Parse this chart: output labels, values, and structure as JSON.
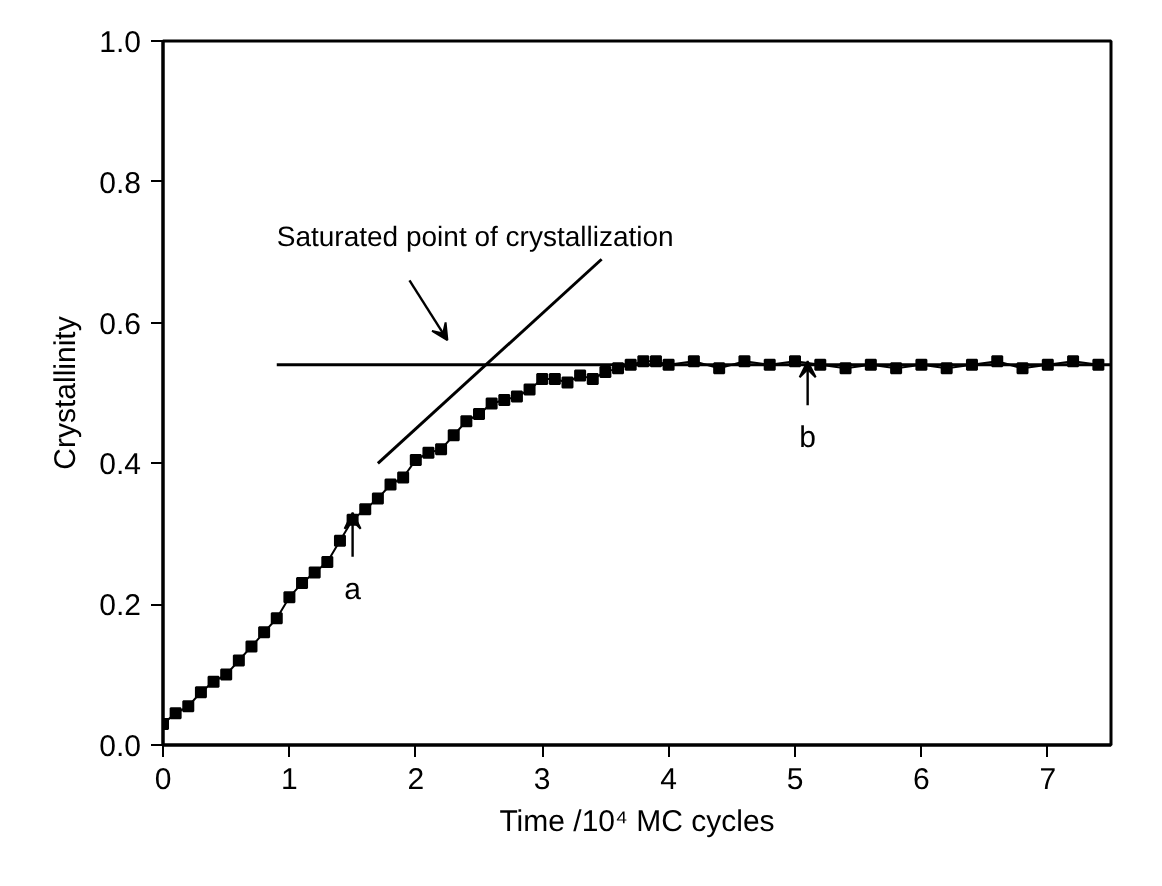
{
  "chart_data": {
    "type": "line",
    "xlabel": "Time /10⁴ MC cycles",
    "ylabel": "Crystallinity",
    "xlim": [
      0,
      7.5
    ],
    "ylim": [
      0,
      1.0
    ],
    "xticks": [
      0,
      1,
      2,
      3,
      4,
      5,
      6,
      7
    ],
    "yticks": [
      {
        "value": 0,
        "label": "0.0"
      },
      0.2,
      0.4,
      0.6,
      0.8,
      {
        "value": 1,
        "label": "1.0"
      }
    ],
    "grid": false,
    "series": [
      {
        "color": "#000000",
        "marker": "square",
        "x": [
          0,
          0.1,
          0.2,
          0.3,
          0.4,
          0.5,
          0.6,
          0.7,
          0.8,
          0.9,
          1.0,
          1.1,
          1.2,
          1.3,
          1.4,
          1.5,
          1.6,
          1.7,
          1.8,
          1.9,
          2.0,
          2.1,
          2.2,
          2.3,
          2.4,
          2.5,
          2.6,
          2.7,
          2.8,
          2.9,
          3.0,
          3.1,
          3.2,
          3.3,
          3.4,
          3.5,
          3.6,
          3.7,
          3.8,
          3.9,
          4.0,
          4.2,
          4.4,
          4.6,
          4.8,
          5.0,
          5.2,
          5.4,
          5.6,
          5.8,
          6.0,
          6.2,
          6.4,
          6.6,
          6.8,
          7.0,
          7.2,
          7.4
        ],
        "values": [
          0.03,
          0.045,
          0.055,
          0.075,
          0.09,
          0.1,
          0.12,
          0.14,
          0.16,
          0.18,
          0.21,
          0.23,
          0.245,
          0.26,
          0.29,
          0.32,
          0.335,
          0.35,
          0.37,
          0.38,
          0.405,
          0.415,
          0.42,
          0.44,
          0.46,
          0.47,
          0.485,
          0.49,
          0.495,
          0.505,
          0.52,
          0.52,
          0.515,
          0.525,
          0.52,
          0.53,
          0.535,
          0.54,
          0.545,
          0.545,
          0.54,
          0.545,
          0.535,
          0.545,
          0.54,
          0.545,
          0.54,
          0.535,
          0.54,
          0.535,
          0.54,
          0.535,
          0.54,
          0.545,
          0.535,
          0.54,
          0.545,
          0.54
        ]
      },
      {
        "type": "line",
        "color": "#000000",
        "marker": "none",
        "x": [
          1.7,
          3.47
        ],
        "values": [
          0.4,
          0.69
        ]
      },
      {
        "type": "line",
        "color": "#000000",
        "marker": "none",
        "x": [
          0.9,
          7.5
        ],
        "values": [
          0.54,
          0.54
        ]
      }
    ],
    "annotations": [
      "Saturated point of crystallization",
      {
        "text": "a",
        "x": 1.5,
        "y": 0.33
      },
      {
        "text": "b",
        "x": 5.1,
        "y": 0.545
      }
    ]
  }
}
